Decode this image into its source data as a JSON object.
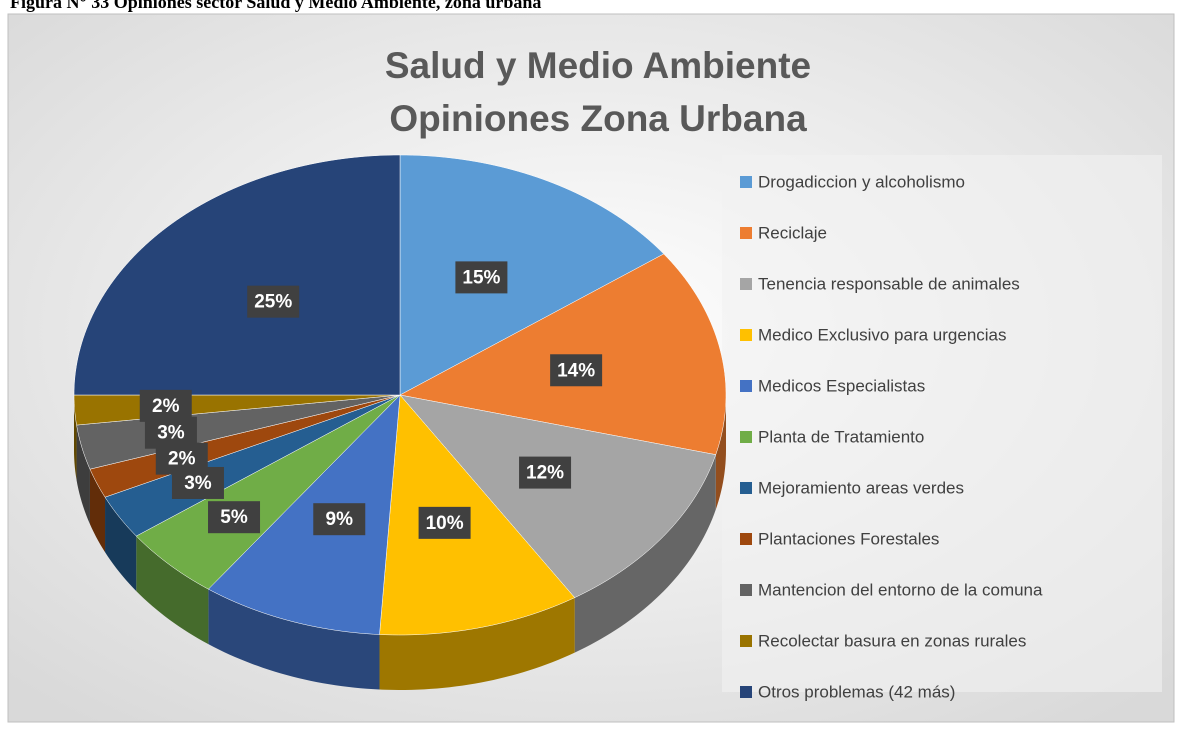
{
  "caption": "Figura N° 33 Opiniones sector Salud y Medio Ambiente, zona urbana",
  "chart_data": {
    "type": "pie3d",
    "title": [
      "Salud y Medio Ambiente",
      "Opiniones Zona Urbana"
    ],
    "categories": [
      "Drogadiccion y alcoholismo",
      "Reciclaje",
      "Tenencia responsable de animales",
      "Medico Exclusivo para urgencias",
      "Medicos Especialistas",
      "Planta de Tratamiento",
      "Mejoramiento areas verdes",
      "Plantaciones Forestales",
      "Mantencion del entorno de la comuna",
      "Recolectar basura en zonas rurales",
      "Otros problemas  (42 más)"
    ],
    "values": [
      15,
      14,
      12,
      10,
      9,
      5,
      3,
      2,
      3,
      2,
      25
    ],
    "value_labels": [
      "15%",
      "14%",
      "12%",
      "10%",
      "9%",
      "5%",
      "3%",
      "2%",
      "3%",
      "2%",
      "25%"
    ],
    "colors": [
      "#5b9bd5",
      "#ed7d31",
      "#a5a5a5",
      "#ffc000",
      "#4472c4",
      "#70ad47",
      "#255e91",
      "#9e480e",
      "#636363",
      "#997300",
      "#264478"
    ],
    "legend": "right"
  }
}
